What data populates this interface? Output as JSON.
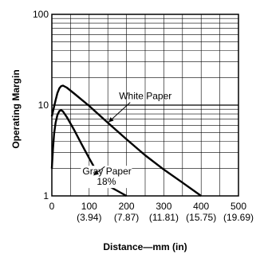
{
  "chart_data": {
    "type": "line",
    "xlabel": "Distance—mm  (in)",
    "ylabel": "Operating  Margin",
    "xlim": [
      0,
      500
    ],
    "ylim": [
      1,
      100
    ],
    "yscale": "log",
    "grid": true,
    "x_ticks": [
      {
        "value": 0,
        "label": "0",
        "sublabel": ""
      },
      {
        "value": 100,
        "label": "100",
        "sublabel": "(3.94)"
      },
      {
        "value": 200,
        "label": "200",
        "sublabel": "(7.87)"
      },
      {
        "value": 300,
        "label": "300",
        "sublabel": "(11.81)"
      },
      {
        "value": 400,
        "label": "400",
        "sublabel": "(15.75)"
      },
      {
        "value": 500,
        "label": "500",
        "sublabel": "(19.69)"
      }
    ],
    "y_ticks": [
      {
        "value": 1,
        "label": "1"
      },
      {
        "value": 10,
        "label": "10"
      },
      {
        "value": 100,
        "label": "100"
      }
    ],
    "series": [
      {
        "name": "White Paper",
        "points": [
          [
            0,
            7.5
          ],
          [
            5,
            9.2
          ],
          [
            10,
            11.3
          ],
          [
            15,
            13.6
          ],
          [
            20,
            15.3
          ],
          [
            25,
            16.2
          ],
          [
            30,
            16.4
          ],
          [
            40,
            15.6
          ],
          [
            60,
            13.4
          ],
          [
            100,
            9.8
          ],
          [
            150,
            6.4
          ],
          [
            200,
            4.2
          ],
          [
            250,
            2.8
          ],
          [
            300,
            1.95
          ],
          [
            350,
            1.4
          ],
          [
            400,
            1.0
          ]
        ]
      },
      {
        "name": "Gray Paper 18%",
        "points": [
          [
            0,
            2.0
          ],
          [
            3,
            3.3
          ],
          [
            6,
            4.8
          ],
          [
            10,
            6.4
          ],
          [
            15,
            7.8
          ],
          [
            20,
            8.6
          ],
          [
            25,
            8.8
          ],
          [
            30,
            8.5
          ],
          [
            40,
            7.4
          ],
          [
            60,
            5.3
          ],
          [
            80,
            3.7
          ],
          [
            100,
            2.6
          ],
          [
            120,
            1.85
          ],
          [
            150,
            1.3
          ],
          [
            200,
            1.0
          ]
        ]
      }
    ],
    "annotations": [
      {
        "series": 0,
        "label": "White Paper",
        "at": [
          180,
          11.6
        ],
        "arrow_to": [
          152,
          6.5
        ]
      },
      {
        "series": 1,
        "label": "Gray Paper",
        "label2": "18%",
        "at": [
          82,
          1.72
        ],
        "arrow_to": [
          112,
          2.15
        ]
      }
    ]
  }
}
